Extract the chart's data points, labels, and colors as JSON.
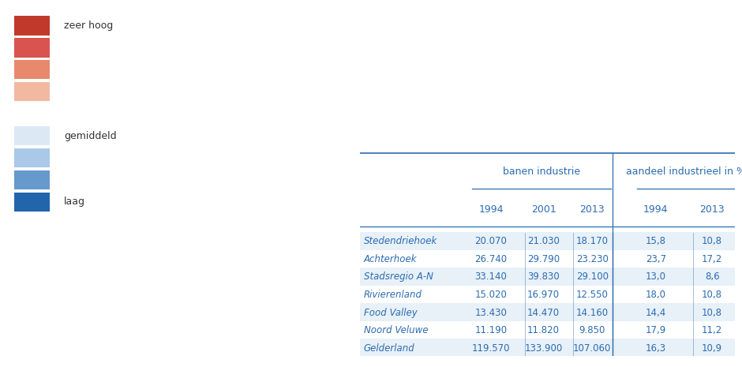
{
  "legend_labels": [
    "zeer hoog",
    "",
    "",
    "",
    "gemiddeld",
    "",
    "",
    "laag"
  ],
  "legend_colors": [
    "#c0392b",
    "#d9534f",
    "#e8896c",
    "#f2b8a0",
    "#dce9f5",
    "#aac8e8",
    "#6699cc",
    "#2166aa"
  ],
  "table_rows": [
    [
      "Stedendriehoek",
      "20.070",
      "21.030",
      "18.170",
      "15,8",
      "10,8"
    ],
    [
      "Achterhoek",
      "26.740",
      "29.790",
      "23.230",
      "23,7",
      "17,2"
    ],
    [
      "Stadsregio A-N",
      "33.140",
      "39.830",
      "29.100",
      "13,0",
      "8,6"
    ],
    [
      "Rivierenland",
      "15.020",
      "16.970",
      "12.550",
      "18,0",
      "10,8"
    ],
    [
      "Food Valley",
      "13.430",
      "14.470",
      "14.160",
      "14,4",
      "10,8"
    ],
    [
      "Noord Veluwe",
      "11.190",
      "11.820",
      "9.850",
      "17,9",
      "11,2"
    ],
    [
      "Gelderland",
      "119.570",
      "133.900",
      "107.060",
      "16,3",
      "10,9"
    ]
  ],
  "col_header2": [
    "",
    "1994",
    "2001",
    "2013",
    "1994",
    "2013"
  ],
  "table_text_color": "#2b6cb0",
  "header_line_color": "#2b6cb0",
  "bg_color": "#ffffff",
  "figure_bg": "#ffffff",
  "row_alt_color": "#e8f0f8",
  "row_base_color": "#ffffff"
}
